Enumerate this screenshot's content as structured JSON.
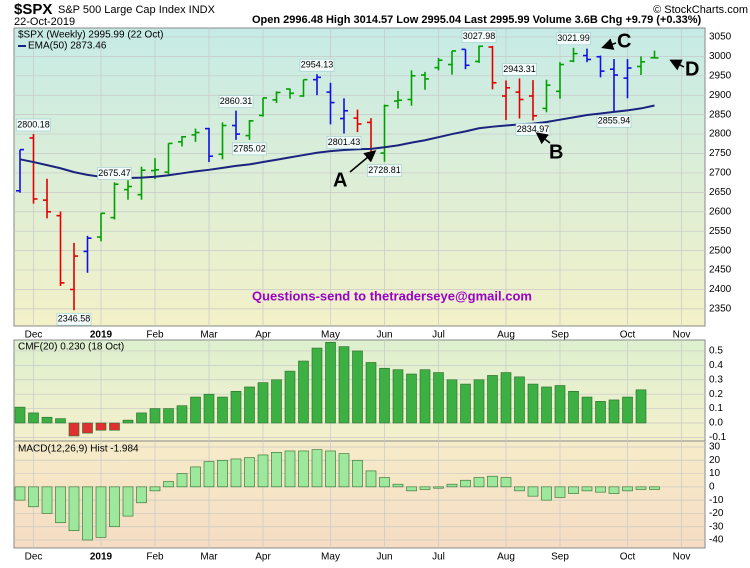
{
  "header": {
    "symbol": "$SPX",
    "name": "S&P 500 Large Cap Index INDX",
    "date": "22-Oct-2019",
    "quote": "Open 2996.48  High 3014.57  Low 2995.04  Last 2995.99  Volume 3.6B  Chg +9.79 (+0.33%)",
    "credit": "© StockCharts.com"
  },
  "chart_data": [
    {
      "type": "ohlc",
      "legend": [
        "$SPX (Weekly) 2995.99 (22 Oct)",
        "EMA(50) 2873.46"
      ],
      "categories": [
        null,
        "Dec",
        null,
        null,
        null,
        null,
        "2019",
        null,
        null,
        null,
        "Feb",
        null,
        null,
        null,
        "Mar",
        null,
        null,
        null,
        "Apr",
        null,
        null,
        null,
        null,
        "May",
        null,
        null,
        null,
        "Jun",
        null,
        null,
        null,
        "Jul",
        null,
        null,
        null,
        null,
        "Aug",
        null,
        null,
        null,
        "Sep",
        null,
        null,
        null,
        null,
        "Oct",
        null,
        null,
        null,
        "Nov"
      ],
      "open": [
        2654,
        2790,
        2630,
        2590,
        2400,
        2498,
        2535,
        2585,
        2657,
        2644,
        2706,
        2702,
        2780,
        2798,
        2814,
        2748,
        2822,
        2796,
        2848,
        2888,
        2916,
        2898,
        2940,
        2908,
        2840,
        2841,
        2830,
        2751,
        2885,
        2889,
        2952,
        2971,
        2979,
        3018,
        2987,
        3024,
        2898,
        2908,
        2898,
        2866,
        2910,
        2988,
        3002,
        2999,
        2967,
        2944,
        2974,
        2996.48,
        null,
        null
      ],
      "high": [
        2760,
        2800.18,
        2685,
        2601,
        2520,
        2538,
        2597,
        2675.47,
        2681,
        2716,
        2738,
        2776,
        2795,
        2814,
        2816,
        2830,
        2860.31,
        2836,
        2893,
        2910,
        2917,
        2940,
        2954.13,
        2932,
        2892,
        2863,
        2841,
        2876,
        2911,
        2964,
        2960,
        2996,
        3014,
        3018,
        3027.98,
        3027,
        2938,
        2943.31,
        2939,
        2940,
        2985,
        3021.99,
        3020,
        3002,
        2993,
        2993,
        3000,
        3014.57,
        null,
        null
      ],
      "low": [
        2649,
        2621,
        2583,
        2409,
        2346.58,
        2443,
        2524,
        2580,
        2631,
        2631,
        2684,
        2697,
        2768,
        2780,
        2728,
        2735,
        2785,
        2785.02,
        2845,
        2880,
        2891,
        2896,
        2900,
        2825,
        2801.43,
        2805,
        2750,
        2728.81,
        2866,
        2873,
        2914,
        2964,
        2953,
        2967,
        2983,
        2915,
        2836,
        2840,
        2834.97,
        2856,
        2891,
        2985,
        2985,
        2946,
        2855.94,
        2892,
        2952,
        2995.04,
        null,
        null
      ],
      "close": [
        2760,
        2633,
        2600,
        2417,
        2486,
        2532,
        2596,
        2671,
        2665,
        2707,
        2708,
        2776,
        2793,
        2804,
        2743,
        2822,
        2800,
        2834,
        2893,
        2907,
        2905,
        2940,
        2946,
        2881,
        2860,
        2826,
        2752,
        2873,
        2887,
        2950,
        2942,
        2990,
        3014,
        2977,
        3026,
        2932,
        2919,
        2889,
        2847,
        2926,
        2979,
        3007,
        2992,
        2962,
        2952,
        2970,
        2986,
        2995.99,
        null,
        null
      ],
      "colors": [
        "#1010e0",
        "#e00000",
        "#e00000",
        "#e00000",
        "#e00000",
        "#1010e0",
        "#00a000",
        "#00a000",
        "#00a000",
        "#00a000",
        "#00a000",
        "#00a000",
        "#00a000",
        "#00a000",
        "#1010e0",
        "#00a000",
        "#1010e0",
        "#00a000",
        "#00a000",
        "#00a000",
        "#00a000",
        "#00a000",
        "#1010e0",
        "#1010e0",
        "#1010e0",
        "#e00000",
        "#e00000",
        "#00a000",
        "#00a000",
        "#00a000",
        "#00a000",
        "#00a000",
        "#00a000",
        "#1010e0",
        "#00a000",
        "#e00000",
        "#e00000",
        "#e00000",
        "#e00000",
        "#00a000",
        "#00a000",
        "#00a000",
        "#1010e0",
        "#1010e0",
        "#1010e0",
        "#1010e0",
        "#00a000",
        "#00a000",
        null,
        null
      ],
      "ema": {
        "name": "EMA(50)",
        "color": "#1a237e",
        "values": [
          2735,
          2728,
          2720,
          2712,
          2702,
          2695,
          2690,
          2688,
          2687,
          2688,
          2690,
          2694,
          2699,
          2704,
          2708,
          2713,
          2718,
          2722,
          2728,
          2734,
          2740,
          2746,
          2752,
          2756,
          2759,
          2761,
          2762,
          2766,
          2771,
          2778,
          2784,
          2792,
          2800,
          2807,
          2815,
          2819,
          2822,
          2825,
          2827,
          2831,
          2837,
          2843,
          2849,
          2853,
          2857,
          2861,
          2866,
          2873.46,
          null,
          null
        ]
      },
      "price_labels": [
        2800.18,
        2346.58,
        2675.47,
        2860.31,
        2785.02,
        2954.13,
        2801.43,
        2728.81,
        3027.98,
        2943.31,
        2834.97,
        3021.99,
        2855.94
      ],
      "annotations": [
        "A",
        "B",
        "C",
        "D"
      ],
      "note": "Questions-send to thetraderseye@gmail.com",
      "ylim": [
        2306,
        3073
      ],
      "yticks": [
        2350,
        2400,
        2450,
        2500,
        2550,
        2600,
        2650,
        2700,
        2750,
        2800,
        2850,
        2900,
        2950,
        3000,
        3050
      ],
      "grid": true
    },
    {
      "type": "bar",
      "legend": "CMF(20) 0.230 (18 Oct)",
      "values": [
        0.11,
        0.07,
        0.04,
        0.03,
        -0.09,
        -0.07,
        -0.05,
        -0.05,
        0.02,
        0.07,
        0.1,
        0.1,
        0.12,
        0.18,
        0.2,
        0.18,
        0.22,
        0.25,
        0.28,
        0.3,
        0.36,
        0.43,
        0.52,
        0.56,
        0.53,
        0.5,
        0.42,
        0.38,
        0.37,
        0.34,
        0.37,
        0.35,
        0.3,
        0.27,
        0.3,
        0.33,
        0.35,
        0.32,
        0.27,
        0.25,
        0.26,
        0.22,
        0.18,
        0.15,
        0.16,
        0.18,
        0.23,
        null,
        null,
        null
      ],
      "color": "#3cb043",
      "negative_color": "#e03030",
      "ylim": [
        -0.125,
        0.576
      ],
      "yticks": [
        -0.1,
        {
          "value": 0,
          "label": "0.0"
        },
        0.1,
        0.2,
        0.3,
        0.4,
        0.5
      ],
      "grid": true
    },
    {
      "type": "bar",
      "legend": "MACD(12,26,9) Hist -1.984",
      "categories": [
        null,
        "Dec",
        null,
        null,
        null,
        null,
        "2019",
        null,
        null,
        null,
        "Feb",
        null,
        null,
        null,
        "Mar",
        null,
        null,
        null,
        "Apr",
        null,
        null,
        null,
        null,
        "May",
        null,
        null,
        null,
        "Jun",
        null,
        null,
        null,
        "Jul",
        null,
        null,
        null,
        null,
        "Aug",
        null,
        null,
        null,
        "Sep",
        null,
        null,
        null,
        null,
        "Oct",
        null,
        null,
        null,
        "Nov"
      ],
      "values": [
        -10,
        -15,
        -20,
        -27,
        -33,
        -40,
        -38,
        -30,
        -22,
        -12,
        -3,
        4,
        10,
        15,
        19,
        20,
        21,
        22,
        24,
        26,
        27,
        27,
        28,
        27,
        25,
        20,
        12,
        7,
        2,
        -3,
        -2,
        -1,
        2,
        5,
        7,
        8,
        7,
        -3,
        -7,
        -10,
        -8,
        -5,
        -3,
        -4,
        -5,
        -3,
        -2,
        -1.984,
        null,
        null
      ],
      "color": "#9ee89e",
      "ylim": [
        -46,
        34.5
      ],
      "yticks": [
        -40,
        -30,
        -20,
        -10,
        0,
        10,
        20,
        30
      ],
      "grid": true
    }
  ]
}
